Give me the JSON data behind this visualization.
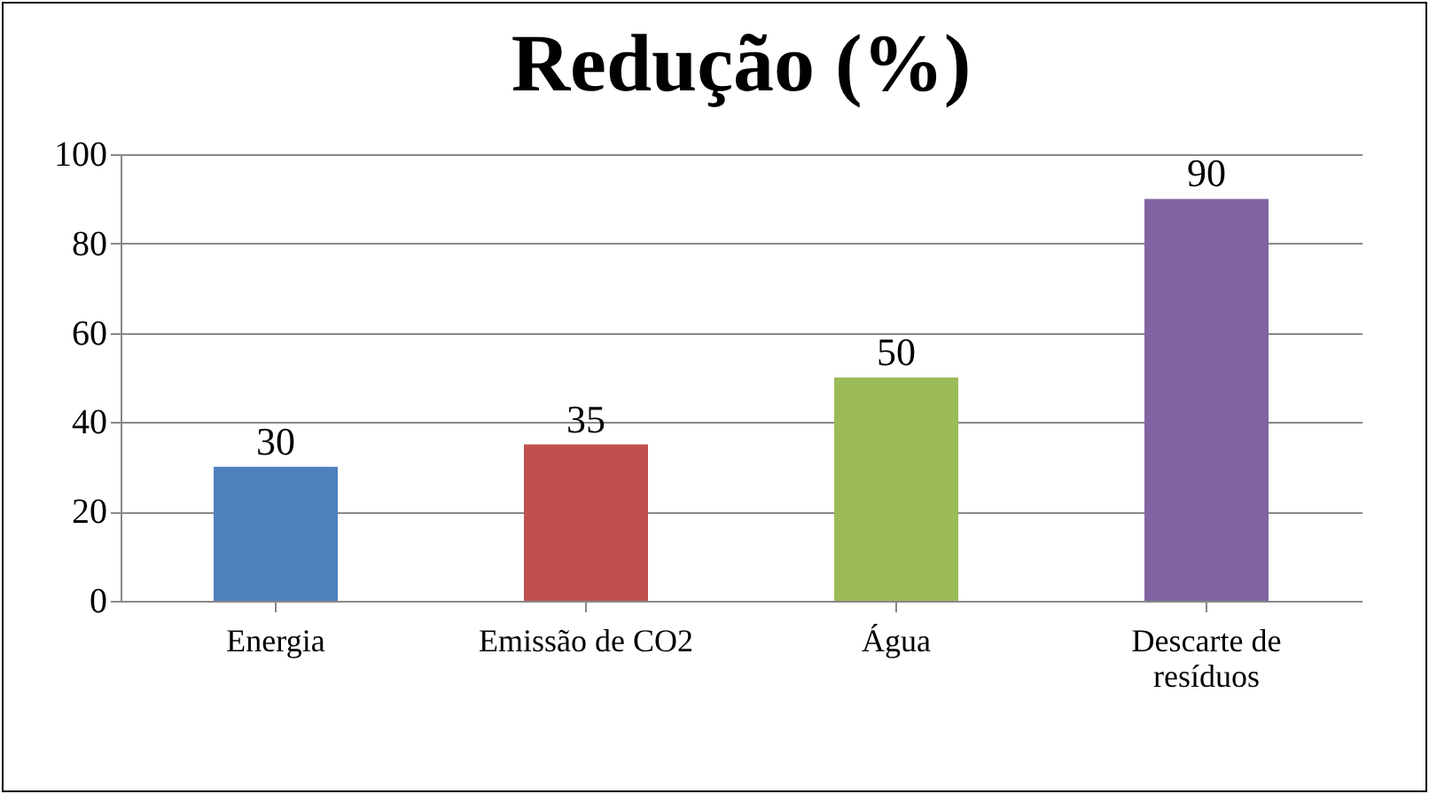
{
  "chart_data": {
    "type": "bar",
    "title": "Redução (%)",
    "categories": [
      "Energia",
      "Emissão de CO2",
      "Água",
      "Descarte de resíduos"
    ],
    "values": [
      30,
      35,
      50,
      90
    ],
    "colors": [
      "#4f81bd",
      "#c0504d",
      "#9bbb59",
      "#8064a2"
    ],
    "ylim": [
      0,
      100
    ],
    "yticks": [
      0,
      20,
      40,
      60,
      80,
      100
    ],
    "grid": "y",
    "data_labels": true
  }
}
